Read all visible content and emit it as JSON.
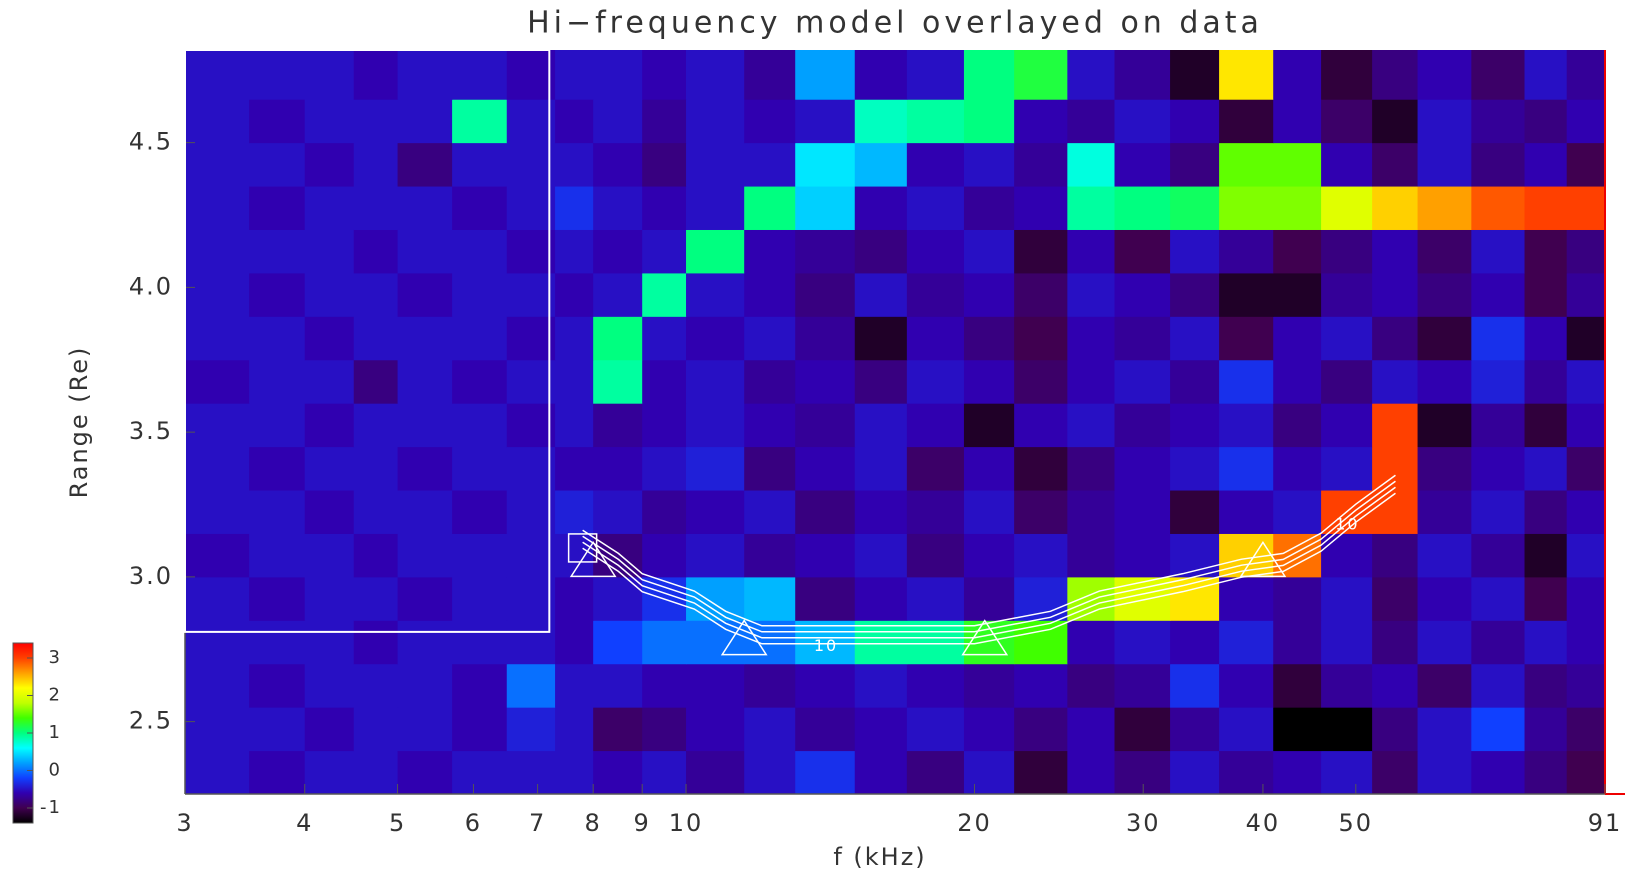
{
  "chart_data": {
    "type": "heatmap",
    "title": "Hi−frequency model overlayed on data",
    "xlabel": "f (kHz)",
    "ylabel": "Range (Re)",
    "log_x": true,
    "xlim": [
      3,
      91
    ],
    "ylim": [
      2.25,
      4.82
    ],
    "xticks": [
      3,
      4,
      5,
      6,
      7,
      8,
      9,
      10,
      20,
      30,
      40,
      50,
      91
    ],
    "yticks": [
      2.5,
      {
        "value": 3,
        "label": "3.0"
      },
      3.5,
      {
        "value": 4,
        "label": "4.0"
      },
      4.5
    ],
    "xbins": [
      3,
      3.5,
      4,
      4.5,
      5,
      5.7,
      6.5,
      7.3,
      8,
      9,
      10,
      11.5,
      13,
      15,
      17,
      19.5,
      22,
      25,
      28,
      32,
      36,
      41,
      46,
      52,
      58,
      66,
      75,
      83,
      91
    ],
    "ybins": [
      2.25,
      2.4,
      2.55,
      2.7,
      2.85,
      3.0,
      3.15,
      3.3,
      3.45,
      3.6,
      3.75,
      3.9,
      4.05,
      4.2,
      4.35,
      4.5,
      4.65,
      4.82
    ],
    "z": [
      [
        -0.5,
        -0.6,
        -0.5,
        -0.5,
        -0.6,
        -0.5,
        -0.5,
        -0.5,
        -0.6,
        -0.5,
        -0.7,
        -0.5,
        -0.3,
        -0.6,
        -0.8,
        -0.5,
        -1.1,
        -0.6,
        -0.8,
        -0.5,
        -0.7,
        -0.6,
        -0.5,
        -0.9,
        -0.5,
        -0.6,
        -0.8,
        -1.0
      ],
      [
        -0.5,
        -0.5,
        -0.6,
        -0.5,
        -0.5,
        -0.6,
        -0.4,
        -0.5,
        -0.9,
        -0.8,
        -0.6,
        -0.5,
        -0.7,
        -0.6,
        -0.5,
        -0.6,
        -0.8,
        -0.6,
        -1.1,
        -0.7,
        -0.5,
        -1.4,
        -1.4,
        -0.8,
        -0.5,
        -0.2,
        -0.7,
        -0.9
      ],
      [
        -0.5,
        -0.6,
        -0.5,
        -0.5,
        -0.5,
        -0.6,
        0.0,
        -0.5,
        -0.5,
        -0.6,
        -0.6,
        -0.7,
        -0.6,
        -0.5,
        -0.6,
        -0.7,
        -0.6,
        -0.8,
        -0.7,
        -0.3,
        -0.6,
        -1.1,
        -0.7,
        -0.6,
        -0.9,
        -0.5,
        -0.8,
        -0.7
      ],
      [
        -0.5,
        -0.5,
        -0.5,
        -0.6,
        -0.5,
        -0.5,
        -0.5,
        -0.6,
        -0.2,
        0.0,
        0.0,
        0.0,
        0.3,
        0.9,
        0.9,
        1.3,
        1.4,
        -0.6,
        -0.5,
        -0.6,
        -0.4,
        -0.7,
        -0.5,
        -0.8,
        -0.5,
        -0.7,
        -0.5,
        -0.6
      ],
      [
        -0.5,
        -0.6,
        -0.5,
        -0.5,
        -0.6,
        -0.5,
        -0.5,
        -0.6,
        -0.5,
        -0.3,
        0.2,
        0.3,
        -0.8,
        -0.6,
        -0.5,
        -0.7,
        -0.4,
        1.7,
        2.0,
        2.3,
        -0.6,
        -0.7,
        -0.5,
        -0.9,
        -0.6,
        -0.5,
        -1.0,
        -0.6
      ],
      [
        -0.6,
        -0.5,
        -0.5,
        -0.6,
        -0.5,
        -0.5,
        -0.5,
        -0.5,
        -0.8,
        -0.6,
        -0.5,
        -0.7,
        -0.6,
        -0.5,
        -0.8,
        -0.6,
        -0.5,
        -0.7,
        -0.6,
        -0.5,
        2.4,
        2.8,
        -0.6,
        -0.8,
        -0.5,
        -0.7,
        -1.2,
        -0.5
      ],
      [
        -0.5,
        -0.5,
        -0.6,
        -0.5,
        -0.5,
        -0.6,
        -0.5,
        -0.4,
        -0.5,
        -0.7,
        -0.6,
        -0.5,
        -0.8,
        -0.6,
        -0.7,
        -0.5,
        -0.9,
        -0.7,
        -0.6,
        -1.1,
        -0.6,
        -0.5,
        3.0,
        3.0,
        -0.7,
        -0.5,
        -0.8,
        -0.6
      ],
      [
        -0.5,
        -0.6,
        -0.5,
        -0.5,
        -0.6,
        -0.5,
        -0.5,
        -0.6,
        -0.6,
        -0.5,
        -0.4,
        -0.8,
        -0.6,
        -0.5,
        -0.9,
        -0.6,
        -1.1,
        -0.8,
        -0.6,
        -0.5,
        -0.3,
        -0.6,
        -0.5,
        3.0,
        -0.8,
        -0.6,
        -0.5,
        -0.9
      ],
      [
        -0.5,
        -0.5,
        -0.6,
        -0.5,
        -0.5,
        -0.5,
        -0.6,
        -0.5,
        -0.7,
        -0.6,
        -0.5,
        -0.6,
        -0.7,
        -0.5,
        -0.6,
        -1.2,
        -0.6,
        -0.5,
        -0.7,
        -0.6,
        -0.5,
        -0.8,
        -0.6,
        3.0,
        -1.2,
        -0.7,
        -1.1,
        -0.6
      ],
      [
        -0.6,
        -0.5,
        -0.5,
        -0.8,
        -0.5,
        -0.6,
        -0.5,
        -0.5,
        0.9,
        -0.6,
        -0.5,
        -0.7,
        -0.6,
        -0.8,
        -0.5,
        -0.6,
        -0.9,
        -0.6,
        -0.5,
        -0.7,
        -0.3,
        -0.6,
        -0.8,
        -0.5,
        -0.6,
        -0.4,
        -0.7,
        -0.5
      ],
      [
        -0.5,
        -0.5,
        -0.6,
        -0.5,
        -0.5,
        -0.5,
        -0.6,
        -0.5,
        1.0,
        -0.5,
        -0.6,
        -0.5,
        -0.7,
        -1.2,
        -0.6,
        -0.8,
        -1.0,
        -0.6,
        -0.7,
        -0.5,
        -1.0,
        -0.6,
        -0.5,
        -0.8,
        -1.1,
        -0.3,
        -0.6,
        -1.2
      ],
      [
        -0.5,
        -0.6,
        -0.5,
        -0.5,
        -0.6,
        -0.5,
        -0.5,
        -0.6,
        -0.5,
        0.9,
        -0.5,
        -0.6,
        -0.8,
        -0.5,
        -0.7,
        -0.6,
        -0.9,
        -0.5,
        -0.6,
        -0.8,
        -1.2,
        -1.2,
        -0.7,
        -0.6,
        -0.8,
        -0.6,
        -1.0,
        -0.7
      ],
      [
        -0.5,
        -0.5,
        -0.5,
        -0.6,
        -0.5,
        -0.5,
        -0.6,
        -0.5,
        -0.6,
        -0.5,
        1.0,
        -0.6,
        -0.7,
        -0.8,
        -0.6,
        -0.5,
        -1.1,
        -0.6,
        -1.0,
        -0.5,
        -0.7,
        -1.0,
        -0.8,
        -0.6,
        -0.9,
        -0.5,
        -1.0,
        -0.8
      ],
      [
        -0.5,
        -0.6,
        -0.5,
        -0.5,
        -0.5,
        -0.6,
        -0.5,
        -0.3,
        -0.5,
        -0.6,
        -0.5,
        1.0,
        0.4,
        -0.6,
        -0.5,
        -0.7,
        -0.6,
        0.9,
        1.0,
        1.1,
        1.6,
        1.6,
        2.0,
        2.4,
        2.6,
        2.9,
        3.0,
        3.0
      ],
      [
        -0.5,
        -0.5,
        -0.6,
        -0.5,
        -0.8,
        -0.5,
        -0.5,
        -0.5,
        -0.6,
        -0.8,
        -0.5,
        -0.5,
        0.5,
        0.3,
        -0.6,
        -0.5,
        -0.7,
        0.7,
        -0.6,
        -0.8,
        1.5,
        1.5,
        -0.6,
        -0.9,
        -0.5,
        -0.8,
        -0.6,
        -1.0
      ],
      [
        -0.5,
        -0.6,
        -0.5,
        -0.5,
        -0.5,
        0.9,
        -0.5,
        -0.6,
        -0.5,
        -0.7,
        -0.5,
        -0.6,
        -0.5,
        0.8,
        0.9,
        1.0,
        -0.6,
        -0.7,
        -0.5,
        -0.6,
        -1.1,
        -0.6,
        -0.9,
        -1.2,
        -0.5,
        -0.7,
        -0.8,
        -0.6
      ],
      [
        -0.5,
        -0.5,
        -0.5,
        -0.6,
        -0.5,
        -0.5,
        -0.6,
        -0.5,
        -0.5,
        -0.6,
        -0.5,
        -0.7,
        0.2,
        -0.6,
        -0.5,
        1.0,
        1.2,
        -0.5,
        -0.7,
        -1.2,
        2.3,
        -0.6,
        -1.1,
        -0.8,
        -0.6,
        -0.9,
        -0.5,
        -0.7
      ]
    ],
    "zlim": [
      -1.4,
      3.4
    ],
    "zticks": [
      -1,
      0,
      1,
      2,
      3
    ],
    "colors": [
      "#000000",
      "#400050",
      "#3000b0",
      "#1040ff",
      "#00a0ff",
      "#00ffff",
      "#00ff80",
      "#40ff00",
      "#c0ff00",
      "#ffff00",
      "#ffa000",
      "#ff4000",
      "#ff0000"
    ],
    "model": {
      "x": [
        7.8,
        8.5,
        9,
        10.2,
        11,
        12,
        20,
        24,
        27,
        33,
        38,
        42,
        46,
        50,
        55
      ],
      "y": [
        3.13,
        3.05,
        2.98,
        2.92,
        2.85,
        2.8,
        2.8,
        2.85,
        2.92,
        2.98,
        3.03,
        3.05,
        3.12,
        3.22,
        3.32
      ]
    },
    "triangles": {
      "x": [
        8,
        11.5,
        20.5,
        40
      ],
      "y": [
        3.05,
        2.78,
        2.78,
        3.05
      ]
    },
    "squares": {
      "x": [
        7.8
      ],
      "y": [
        3.1
      ]
    },
    "annotations": [
      {
        "text": "10",
        "x": 14,
        "y": 2.76
      },
      {
        "text": "10",
        "x": 49,
        "y": 3.18
      }
    ],
    "box": {
      "x": [
        3,
        7.2
      ],
      "y": [
        2.81,
        4.82
      ]
    }
  }
}
